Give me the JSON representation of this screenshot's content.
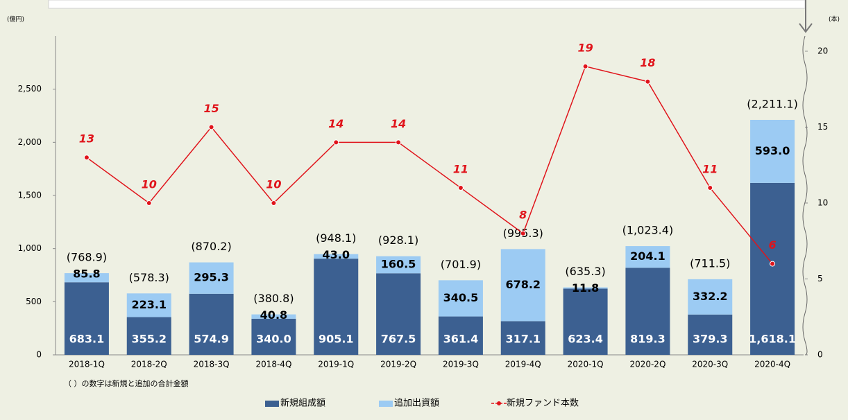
{
  "chart_data": {
    "type": "bar-line",
    "y_unit": "(億円)",
    "y2_unit": "(本)",
    "note": "（ ）の数字は新規と追加の合計金額",
    "categories": [
      "2018-1Q",
      "2018-2Q",
      "2018-3Q",
      "2018-4Q",
      "2019-1Q",
      "2019-2Q",
      "2019-3Q",
      "2019-4Q",
      "2020-1Q",
      "2020-2Q",
      "2020-3Q",
      "2020-4Q"
    ],
    "series": [
      {
        "name": "新規組成額",
        "color": "#3c6091",
        "stacked": true,
        "values": [
          683.1,
          355.2,
          574.9,
          340.0,
          905.1,
          767.5,
          361.4,
          317.1,
          623.4,
          819.3,
          379.3,
          1618.1
        ],
        "value_labels": [
          "683.1",
          "355.2",
          "574.9",
          "340.0",
          "905.1",
          "767.5",
          "361.4",
          "317.1",
          "623.4",
          "819.3",
          "379.3",
          "1,618.1"
        ]
      },
      {
        "name": "追加出資額",
        "color": "#9ccbf3",
        "stacked": true,
        "values": [
          85.8,
          223.1,
          295.3,
          40.8,
          43.0,
          160.5,
          340.5,
          678.2,
          11.8,
          204.1,
          332.2,
          593.0
        ],
        "value_labels": [
          "85.8",
          "223.1",
          "295.3",
          "40.8",
          "43.0",
          "160.5",
          "340.5",
          "678.2",
          "11.8",
          "204.1",
          "332.2",
          "593.0"
        ]
      },
      {
        "name": "新規ファンド本数",
        "color": "#e0141b",
        "axis": "y2",
        "values": [
          13,
          10,
          15,
          10,
          14,
          14,
          11,
          8,
          19,
          18,
          11,
          6
        ]
      }
    ],
    "totals": [
      768.9,
      578.3,
      870.2,
      380.8,
      948.1,
      928.1,
      701.9,
      995.3,
      635.3,
      1023.4,
      711.5,
      2211.1
    ],
    "total_labels": [
      "(768.9)",
      "(578.3)",
      "(870.2)",
      "(380.8)",
      "(948.1)",
      "(928.1)",
      "(701.9)",
      "(995.3)",
      "(635.3)",
      "(1,023.4)",
      "(711.5)",
      "(2,211.1)"
    ],
    "ylim": [
      0,
      3000
    ],
    "yticks": [
      0,
      500,
      {
        "value": 1000,
        "label": "1,000"
      },
      {
        "value": 1500,
        "label": "1,500"
      },
      {
        "value": 2000,
        "label": "2,000"
      },
      {
        "value": 2500,
        "label": "2,500"
      }
    ],
    "y2lim": [
      0,
      21
    ],
    "y2ticks": [
      0,
      5,
      10,
      15,
      20
    ],
    "legend": "bottom"
  }
}
